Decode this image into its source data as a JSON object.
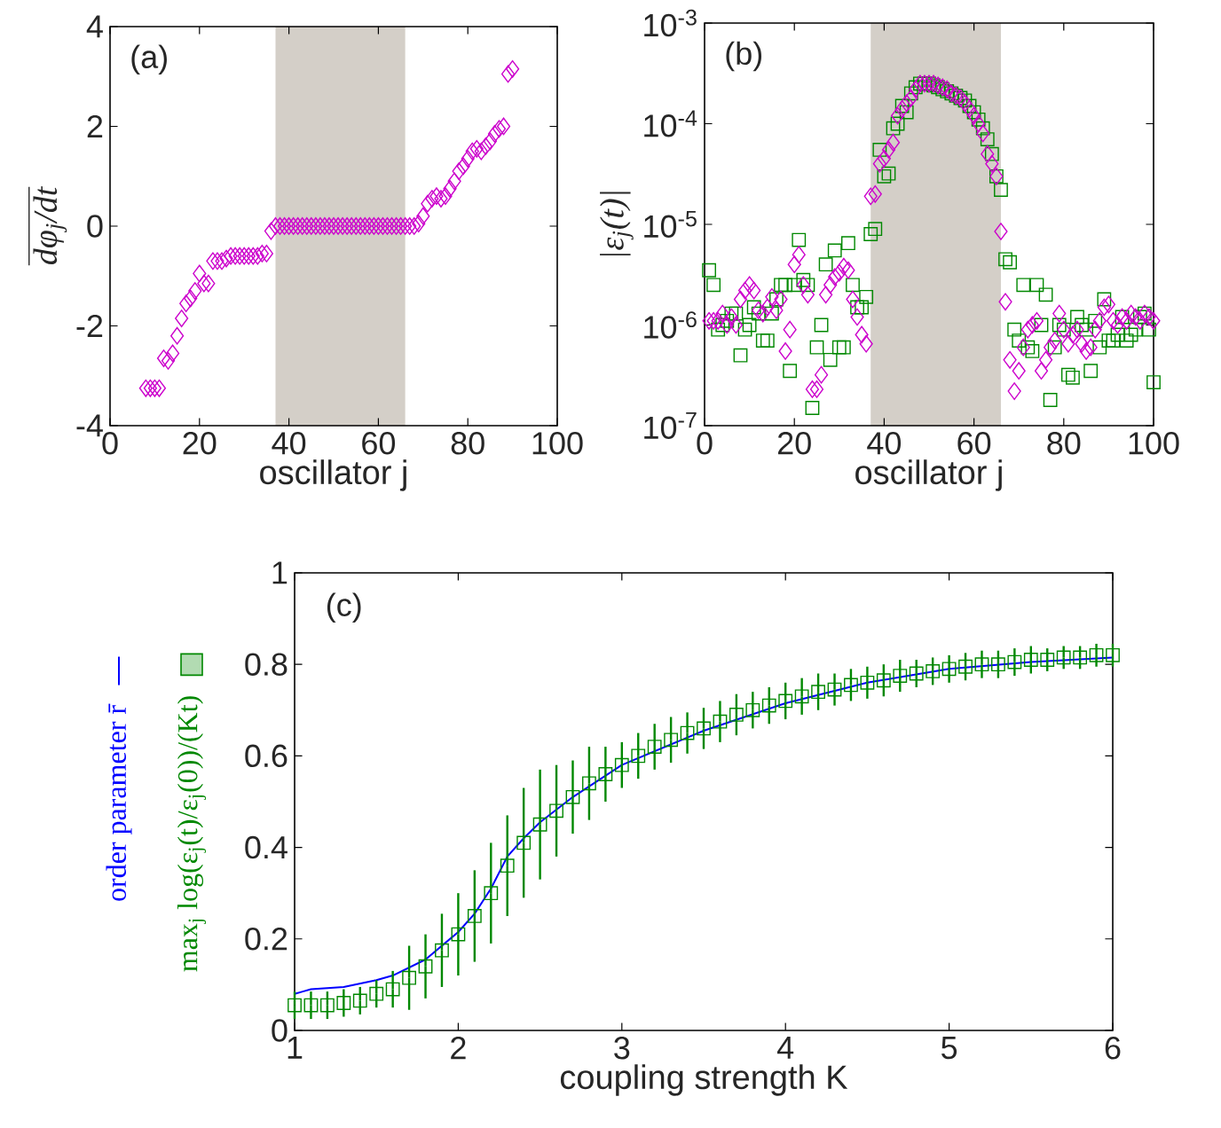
{
  "chart_data": [
    {
      "type": "scatter",
      "annotations": [
        "(a)"
      ],
      "xlabel": "oscillator j",
      "ylabel": "dφ$_{j}$/dt",
      "marker": "diamond",
      "xlim": [
        0,
        100
      ],
      "xticks": [
        0,
        20,
        40,
        60,
        80,
        100
      ],
      "ylim": [
        -4,
        4
      ],
      "yticks": [
        -4,
        -2,
        0,
        2,
        4
      ],
      "bands": [
        {
          "axis": "x",
          "from": 37,
          "to": 66,
          "color": "#d4cfc8"
        }
      ],
      "series": [
        {
          "color": "#cc00cc",
          "x": [
            8,
            9,
            10,
            11,
            12,
            13,
            14,
            15,
            16,
            17,
            18,
            19,
            20,
            21,
            22,
            23,
            24,
            25,
            26,
            27,
            28,
            29,
            30,
            31,
            32,
            33,
            34,
            35,
            36,
            37,
            38,
            39,
            40,
            41,
            42,
            43,
            44,
            45,
            46,
            47,
            48,
            49,
            50,
            51,
            52,
            53,
            54,
            55,
            56,
            57,
            58,
            59,
            60,
            61,
            62,
            63,
            64,
            65,
            66,
            67,
            68,
            69,
            70,
            71,
            72,
            73,
            74,
            75,
            76,
            77,
            78,
            79,
            80,
            81,
            82,
            83,
            84,
            85,
            86,
            87,
            88,
            89,
            90
          ],
          "values": [
            -3.25,
            -3.25,
            -3.25,
            -3.25,
            -2.65,
            -2.7,
            -2.55,
            -2.2,
            -1.85,
            -1.55,
            -1.45,
            -1.3,
            -0.95,
            -1.15,
            -1.15,
            -0.7,
            -0.7,
            -0.7,
            -0.65,
            -0.6,
            -0.6,
            -0.6,
            -0.6,
            -0.6,
            -0.6,
            -0.6,
            -0.55,
            -0.55,
            -0.1,
            0,
            0,
            0,
            0,
            0,
            0,
            0,
            0,
            0,
            0,
            0,
            0,
            0,
            0,
            0,
            0,
            0,
            0,
            0,
            0,
            0,
            0,
            0,
            0,
            0,
            0,
            0,
            0,
            0,
            0,
            0,
            0,
            0.05,
            0.2,
            0.45,
            0.55,
            0.6,
            0.55,
            0.6,
            0.75,
            0.9,
            1.1,
            1.2,
            1.35,
            1.5,
            1.55,
            1.5,
            1.6,
            1.7,
            1.85,
            1.95,
            2.0,
            3.05,
            3.15
          ]
        }
      ]
    },
    {
      "type": "scatter",
      "annotations": [
        "(b)"
      ],
      "xlabel": "oscillator j",
      "ylabel": "|ε$_{j}$(t)|",
      "log": "y",
      "xlim": [
        0,
        100
      ],
      "xticks": [
        0,
        20,
        40,
        60,
        80,
        100
      ],
      "ylim": [
        1e-07,
        0.001
      ],
      "yticks": [
        {
          "value": 1e-07,
          "label": "10$^{-7}$"
        },
        {
          "value": 1e-06,
          "label": "10$^{-6}$"
        },
        {
          "value": 1e-05,
          "label": "10$^{-5}$"
        },
        {
          "value": 0.0001,
          "label": "10$^{-4}$"
        },
        {
          "value": 0.001,
          "label": "10$^{-3}$"
        }
      ],
      "bands": [
        {
          "axis": "x",
          "from": 37,
          "to": 66,
          "color": "#d4cfc8"
        }
      ],
      "x": [
        1,
        2,
        3,
        4,
        5,
        6,
        7,
        8,
        9,
        10,
        11,
        12,
        13,
        14,
        15,
        16,
        17,
        18,
        19,
        20,
        21,
        22,
        23,
        24,
        25,
        26,
        27,
        28,
        29,
        30,
        31,
        32,
        33,
        34,
        35,
        36,
        37,
        38,
        39,
        40,
        41,
        42,
        43,
        44,
        45,
        46,
        47,
        48,
        49,
        50,
        51,
        52,
        53,
        54,
        55,
        56,
        57,
        58,
        59,
        60,
        61,
        62,
        63,
        64,
        65,
        66,
        67,
        68,
        69,
        70,
        71,
        72,
        73,
        74,
        75,
        76,
        77,
        78,
        79,
        80,
        81,
        82,
        83,
        84,
        85,
        86,
        87,
        88,
        89,
        90,
        91,
        92,
        93,
        94,
        95,
        96,
        97,
        98,
        99,
        100
      ],
      "series": [
        {
          "color": "#008800",
          "marker": "square",
          "values": [
            3.5e-06,
            2.5e-06,
            9e-07,
            1e-06,
            1.1e-06,
            1.3e-06,
            1.3e-06,
            5e-07,
            9e-07,
            1e-06,
            1.5e-06,
            1.3e-06,
            7e-07,
            7e-07,
            1.3e-06,
            1.8e-06,
            2.5e-06,
            2.5e-06,
            3.5e-07,
            2.5e-06,
            7e-06,
            2.8e-06,
            2.5e-06,
            1.5e-07,
            6e-07,
            1e-06,
            4e-06,
            4.5e-07,
            5.5e-06,
            6e-07,
            6e-07,
            6.5e-06,
            2.5e-06,
            1.5e-06,
            1.5e-06,
            1.9e-06,
            8e-06,
            9e-06,
            5.5e-05,
            3e-05,
            3.2e-05,
            9e-05,
            0.0001,
            0.00015,
            0.00013,
            0.0002,
            0.00023,
            0.00025,
            0.00025,
            0.00025,
            0.00024,
            0.00023,
            0.00022,
            0.00021,
            0.0002,
            0.00019,
            0.00018,
            0.00017,
            0.00015,
            0.00013,
            0.00011,
            9e-05,
            7e-05,
            5e-05,
            3e-05,
            2.2e-05,
            4.5e-06,
            4.2e-06,
            9e-07,
            7e-07,
            2.5e-06,
            6e-07,
            5.5e-07,
            2.5e-06,
            1e-06,
            2e-06,
            1.8e-07,
            6e-07,
            1e-06,
            9e-07,
            3.2e-07,
            3e-07,
            1.2e-06,
            1e-06,
            9e-07,
            3.5e-07,
            1.1e-06,
            6e-07,
            1.8e-06,
            7e-07,
            7e-07,
            8e-07,
            1.2e-06,
            7e-07,
            8e-07,
            9e-07,
            1.2e-06,
            1.3e-06,
            9e-07,
            2.7e-07
          ]
        },
        {
          "color": "#cc00cc",
          "marker": "diamond",
          "values": [
            1.1e-06,
            1.1e-06,
            1.1e-06,
            1.3e-06,
            1e-06,
            1.2e-06,
            1e-06,
            1.8e-06,
            2.2e-06,
            2.5e-06,
            2.2e-06,
            1.4e-06,
            1.3e-06,
            1.5e-06,
            1.9e-06,
            1.4e-06,
            1.8e-06,
            5.5e-07,
            9e-07,
            4e-06,
            5e-06,
            2.5e-06,
            2e-06,
            2.3e-07,
            2.3e-07,
            3.2e-07,
            2e-06,
            2.5e-06,
            3e-06,
            3.3e-06,
            3.8e-06,
            3.5e-06,
            1.8e-06,
            1.2e-06,
            8e-07,
            6.5e-07,
            1.9e-05,
            2e-05,
            4e-05,
            4.5e-05,
            5.5e-05,
            6.5e-05,
            0.00012,
            0.00014,
            0.00016,
            0.00018,
            0.00022,
            0.00025,
            0.00025,
            0.00025,
            0.00025,
            0.00024,
            0.00023,
            0.00022,
            0.0002,
            0.00019,
            0.00018,
            0.00016,
            0.00014,
            0.00012,
            0.0001,
            8e-05,
            5e-05,
            4e-05,
            3e-05,
            8.5e-06,
            1.7e-06,
            4.5e-07,
            2.2e-07,
            3.5e-07,
            6e-07,
            9e-07,
            1e-06,
            1.1e-06,
            3.5e-07,
            4.5e-07,
            6e-07,
            7e-07,
            1.3e-06,
            9e-07,
            6.5e-07,
            8e-07,
            9e-07,
            6.5e-07,
            5.5e-07,
            6e-07,
            9e-07,
            1.1e-06,
            1.5e-06,
            1.6e-06,
            1.1e-06,
            1e-06,
            1.2e-06,
            1.1e-06,
            1.3e-06,
            1.2e-06,
            1.1e-06,
            1.3e-06,
            1.2e-06,
            1.1e-06
          ]
        }
      ]
    },
    {
      "type": "scatter",
      "annotations": [
        "(c)"
      ],
      "xlabel": "coupling strength K",
      "legend": "left",
      "xlim": [
        1,
        6
      ],
      "xticks": [
        1,
        2,
        3,
        4,
        5,
        6
      ],
      "ylim": [
        0,
        1
      ],
      "yticks": [
        0,
        0.2,
        0.4,
        0.6,
        0.8,
        1
      ],
      "series": [
        {
          "type": "line",
          "name": "order parameter r̄",
          "color": "#0000ff",
          "marker": "none",
          "x": [
            1.0,
            1.05,
            1.1,
            1.3,
            1.5,
            1.6,
            1.8,
            2.0,
            2.1,
            2.2,
            2.3,
            2.4,
            2.5,
            2.7,
            3.0,
            3.5,
            4.0,
            4.5,
            5.0,
            5.5,
            6.0
          ],
          "values": [
            0.08,
            0.085,
            0.09,
            0.095,
            0.11,
            0.12,
            0.155,
            0.215,
            0.255,
            0.31,
            0.38,
            0.42,
            0.455,
            0.51,
            0.58,
            0.655,
            0.715,
            0.76,
            0.79,
            0.805,
            0.815
          ]
        },
        {
          "name": "max$_{j}$ log(ε$_{j}$(t)/ε$_{j}$(0))/(Kt)",
          "color": "#008800",
          "marker": "square",
          "x": [
            1.0,
            1.1,
            1.2,
            1.3,
            1.4,
            1.5,
            1.6,
            1.7,
            1.8,
            1.9,
            2.0,
            2.1,
            2.2,
            2.3,
            2.4,
            2.5,
            2.6,
            2.7,
            2.8,
            2.9,
            3.0,
            3.1,
            3.2,
            3.3,
            3.4,
            3.5,
            3.6,
            3.7,
            3.8,
            3.9,
            4.0,
            4.1,
            4.2,
            4.3,
            4.4,
            4.5,
            4.6,
            4.7,
            4.8,
            4.9,
            5.0,
            5.1,
            5.2,
            5.3,
            5.4,
            5.5,
            5.6,
            5.7,
            5.8,
            5.9,
            6.0
          ],
          "values": [
            0.055,
            0.055,
            0.055,
            0.06,
            0.065,
            0.08,
            0.09,
            0.115,
            0.14,
            0.175,
            0.21,
            0.25,
            0.3,
            0.36,
            0.41,
            0.45,
            0.48,
            0.51,
            0.54,
            0.56,
            0.58,
            0.6,
            0.62,
            0.635,
            0.65,
            0.66,
            0.675,
            0.69,
            0.7,
            0.71,
            0.72,
            0.73,
            0.74,
            0.745,
            0.755,
            0.76,
            0.765,
            0.775,
            0.78,
            0.785,
            0.79,
            0.795,
            0.8,
            0.8,
            0.805,
            0.81,
            0.81,
            0.815,
            0.815,
            0.82,
            0.82
          ],
          "errors": [
            0.03,
            0.03,
            0.03,
            0.03,
            0.03,
            0.03,
            0.04,
            0.07,
            0.07,
            0.08,
            0.09,
            0.1,
            0.11,
            0.11,
            0.12,
            0.12,
            0.1,
            0.08,
            0.08,
            0.06,
            0.05,
            0.05,
            0.05,
            0.05,
            0.045,
            0.045,
            0.045,
            0.045,
            0.04,
            0.04,
            0.04,
            0.04,
            0.04,
            0.035,
            0.035,
            0.035,
            0.035,
            0.035,
            0.03,
            0.03,
            0.03,
            0.03,
            0.03,
            0.03,
            0.03,
            0.03,
            0.025,
            0.025,
            0.025,
            0.025,
            0.025
          ]
        }
      ]
    }
  ]
}
